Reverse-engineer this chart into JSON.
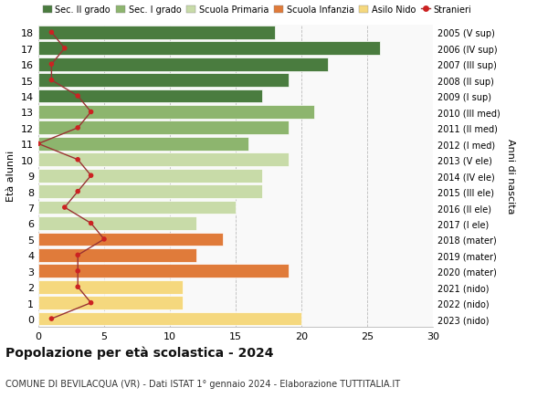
{
  "ages": [
    0,
    1,
    2,
    3,
    4,
    5,
    6,
    7,
    8,
    9,
    10,
    11,
    12,
    13,
    14,
    15,
    16,
    17,
    18
  ],
  "right_labels": [
    "2023 (nido)",
    "2022 (nido)",
    "2021 (nido)",
    "2020 (mater)",
    "2019 (mater)",
    "2018 (mater)",
    "2017 (I ele)",
    "2016 (II ele)",
    "2015 (III ele)",
    "2014 (IV ele)",
    "2013 (V ele)",
    "2012 (I med)",
    "2011 (II med)",
    "2010 (III med)",
    "2009 (I sup)",
    "2008 (II sup)",
    "2007 (III sup)",
    "2006 (IV sup)",
    "2005 (V sup)"
  ],
  "bar_values": [
    20,
    11,
    11,
    19,
    12,
    14,
    12,
    15,
    17,
    17,
    19,
    16,
    19,
    21,
    17,
    19,
    22,
    26,
    18
  ],
  "bar_colors": [
    "#f5d87e",
    "#f5d87e",
    "#f5d87e",
    "#e07b3a",
    "#e07b3a",
    "#e07b3a",
    "#c8dba8",
    "#c8dba8",
    "#c8dba8",
    "#c8dba8",
    "#c8dba8",
    "#8db56e",
    "#8db56e",
    "#8db56e",
    "#4a7c3f",
    "#4a7c3f",
    "#4a7c3f",
    "#4a7c3f",
    "#4a7c3f"
  ],
  "stranieri_values": [
    1,
    4,
    3,
    3,
    3,
    5,
    4,
    2,
    3,
    4,
    3,
    0,
    3,
    4,
    3,
    1,
    1,
    2,
    1
  ],
  "legend_labels": [
    "Sec. II grado",
    "Sec. I grado",
    "Scuola Primaria",
    "Scuola Infanzia",
    "Asilo Nido",
    "Stranieri"
  ],
  "legend_colors": [
    "#4a7c3f",
    "#8db56e",
    "#c8dba8",
    "#e07b3a",
    "#f5d87e",
    "#cc2222"
  ],
  "ylabel_left": "Età alunni",
  "ylabel_right": "Anni di nascita",
  "title": "Popolazione per età scolastica - 2024",
  "subtitle": "COMUNE DI BEVILACQUA (VR) - Dati ISTAT 1° gennaio 2024 - Elaborazione TUTTITALIA.IT",
  "xlim": [
    0,
    30
  ],
  "xticks": [
    0,
    5,
    10,
    15,
    20,
    25,
    30
  ],
  "background_color": "#f9f9f9",
  "bar_edge_color": "#ffffff",
  "grid_color": "#bbbbbb",
  "stranieri_line_color": "#993333",
  "stranieri_dot_color": "#cc2222"
}
